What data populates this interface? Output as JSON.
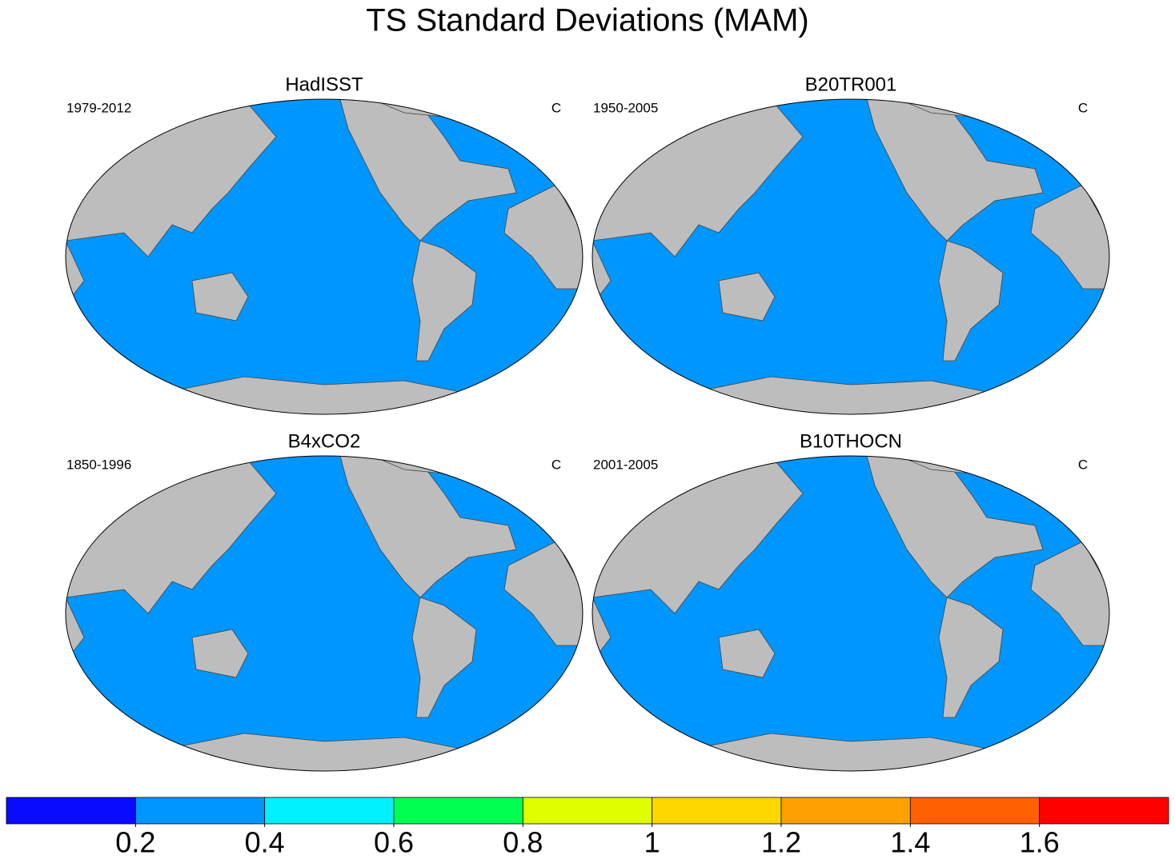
{
  "title": "TS Standard Deviations (MAM)",
  "panels": [
    {
      "title": "HadISST",
      "period": "1979-2012",
      "units": "C"
    },
    {
      "title": "B20TR001",
      "period": "1950-2005",
      "units": "C"
    },
    {
      "title": "B4xCO2",
      "period": "1850-1996",
      "units": "C"
    },
    {
      "title": "B10THOCN",
      "period": "2001-2005",
      "units": "C"
    }
  ],
  "colorbar": {
    "levels": [
      0.2,
      0.4,
      0.6,
      0.8,
      1,
      1.2,
      1.4,
      1.6
    ],
    "colors": [
      "#0a0aff",
      "#0096ff",
      "#00f0ff",
      "#00ff50",
      "#dfff00",
      "#ffd700",
      "#ffa000",
      "#ff6000",
      "#ff0000"
    ]
  }
}
